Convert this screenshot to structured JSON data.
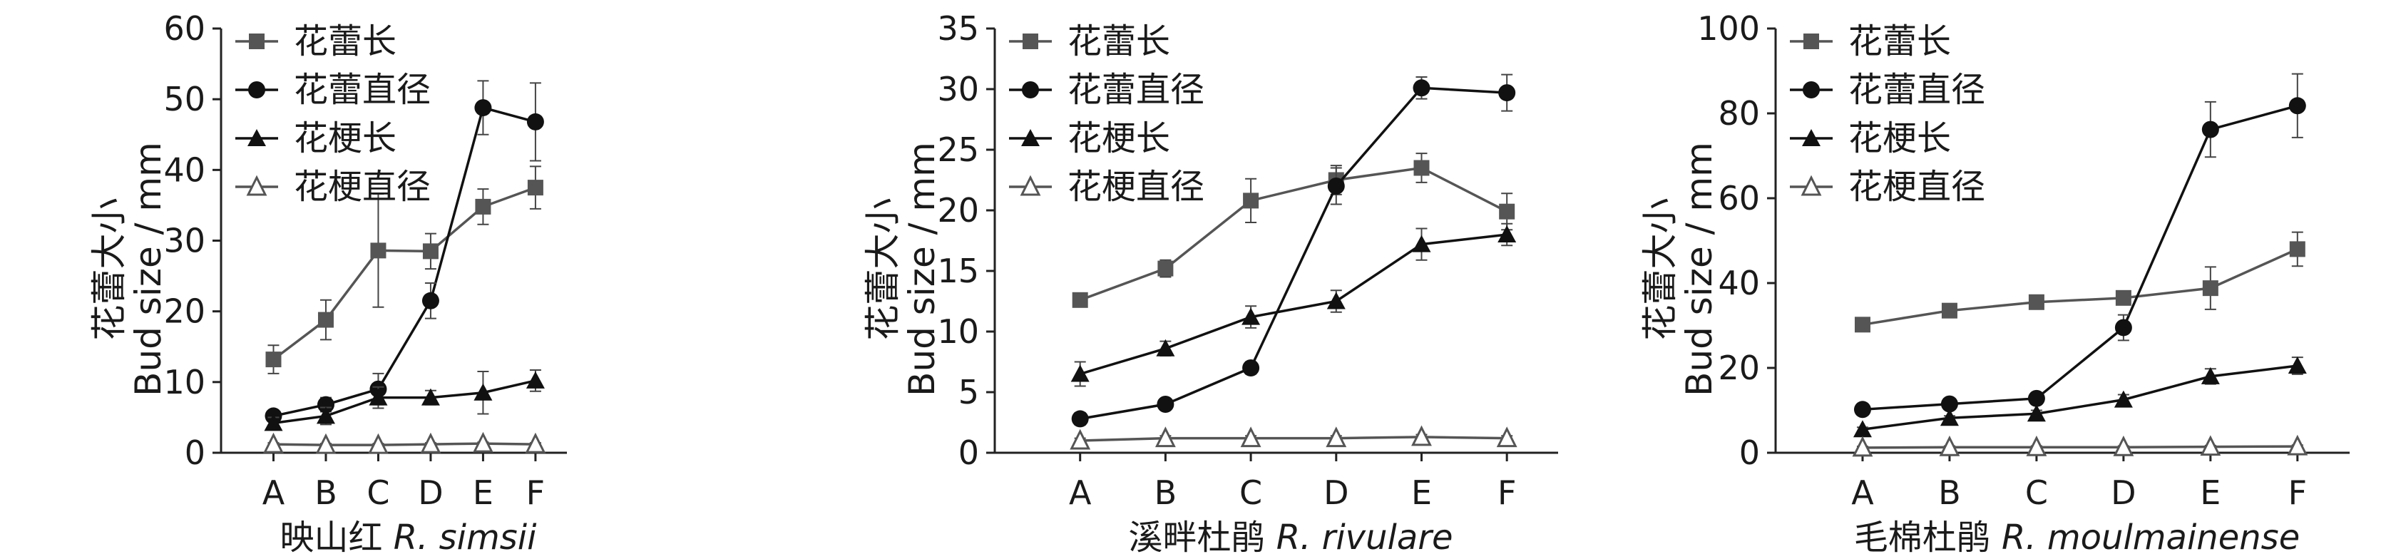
{
  "chart_data": [
    {
      "type": "line",
      "categories": [
        "A",
        "B",
        "C",
        "D",
        "E",
        "F"
      ],
      "xlabel": {
        "cn": "映山红",
        "latin": "R. simsii"
      },
      "ylabel": {
        "cn": "花蕾大小",
        "en": "Bud size / mm"
      },
      "ylim": [
        0,
        60
      ],
      "yticks": [
        0,
        10,
        20,
        30,
        40,
        50,
        60
      ],
      "legend": "top-left",
      "series": [
        {
          "name": "花蕾长",
          "marker": "square",
          "color": "#555555",
          "values": [
            13.2,
            18.8,
            28.6,
            28.5,
            34.8,
            37.5
          ],
          "errors": [
            2.0,
            2.8,
            8.0,
            2.5,
            2.5,
            3.0
          ]
        },
        {
          "name": "花蕾直径",
          "marker": "circle",
          "color": "#111111",
          "values": [
            5.2,
            6.8,
            9.0,
            21.5,
            48.8,
            46.8
          ],
          "errors": [
            0.8,
            1.0,
            2.2,
            2.5,
            3.8,
            5.5
          ]
        },
        {
          "name": "花梗长",
          "marker": "triangle",
          "color": "#111111",
          "values": [
            4.2,
            5.2,
            7.8,
            7.8,
            8.5,
            10.2
          ],
          "errors": [
            0.8,
            1.2,
            1.5,
            1.0,
            3.0,
            1.5
          ]
        },
        {
          "name": "花梗直径",
          "marker": "star",
          "color": "#555555",
          "values": [
            1.2,
            1.1,
            1.1,
            1.2,
            1.3,
            1.2
          ],
          "errors": [
            0.2,
            0.2,
            0.2,
            0.2,
            0.2,
            0.2
          ]
        }
      ]
    },
    {
      "type": "line",
      "categories": [
        "A",
        "B",
        "C",
        "D",
        "E",
        "F"
      ],
      "xlabel": {
        "cn": "溪畔杜鹃",
        "latin": "R. rivulare"
      },
      "ylabel": {
        "cn": "花蕾大小",
        "en": "Bud size / mm"
      },
      "ylim": [
        0,
        35
      ],
      "yticks": [
        0,
        5,
        10,
        15,
        20,
        25,
        30,
        35
      ],
      "legend": "top-left",
      "series": [
        {
          "name": "花蕾长",
          "marker": "square",
          "color": "#555555",
          "values": [
            12.6,
            15.2,
            20.8,
            22.5,
            23.5,
            19.9
          ],
          "errors": [
            0.5,
            0.7,
            1.8,
            1.2,
            1.2,
            1.5
          ]
        },
        {
          "name": "花蕾直径",
          "marker": "circle",
          "color": "#111111",
          "values": [
            2.8,
            4.0,
            7.0,
            22.0,
            30.1,
            29.7
          ],
          "errors": [
            0.5,
            0.3,
            0.5,
            1.5,
            0.9,
            1.5
          ]
        },
        {
          "name": "花梗长",
          "marker": "triangle",
          "color": "#111111",
          "values": [
            6.5,
            8.6,
            11.2,
            12.5,
            17.2,
            18.0
          ],
          "errors": [
            1.0,
            0.6,
            0.9,
            0.9,
            1.3,
            0.9
          ]
        },
        {
          "name": "花梗直径",
          "marker": "star",
          "color": "#555555",
          "values": [
            1.0,
            1.2,
            1.2,
            1.2,
            1.3,
            1.2
          ],
          "errors": [
            0.2,
            0.2,
            0.2,
            0.2,
            0.2,
            0.2
          ]
        }
      ]
    },
    {
      "type": "line",
      "categories": [
        "A",
        "B",
        "C",
        "D",
        "E",
        "F"
      ],
      "xlabel": {
        "cn": "毛棉杜鹃",
        "latin": "R. moulmainense"
      },
      "ylabel": {
        "cn": "花蕾大小",
        "en": "Bud size / mm"
      },
      "ylim": [
        0,
        100
      ],
      "yticks": [
        0,
        20,
        40,
        60,
        80,
        100
      ],
      "legend": "top-left",
      "series": [
        {
          "name": "花蕾长",
          "marker": "square",
          "color": "#555555",
          "values": [
            30.2,
            33.5,
            35.5,
            36.5,
            38.8,
            48.0
          ],
          "errors": [
            1.0,
            1.0,
            1.0,
            1.5,
            5.0,
            4.0
          ]
        },
        {
          "name": "花蕾直径",
          "marker": "circle",
          "color": "#111111",
          "values": [
            10.2,
            11.5,
            12.8,
            29.5,
            76.2,
            81.8
          ],
          "errors": [
            1.0,
            1.0,
            1.0,
            3.0,
            6.5,
            7.5
          ]
        },
        {
          "name": "花梗长",
          "marker": "triangle",
          "color": "#111111",
          "values": [
            5.5,
            8.2,
            9.2,
            12.5,
            18.0,
            20.5
          ],
          "errors": [
            0.5,
            0.5,
            0.8,
            1.2,
            1.8,
            2.0
          ]
        },
        {
          "name": "花梗直径",
          "marker": "star",
          "color": "#555555",
          "values": [
            1.2,
            1.3,
            1.3,
            1.3,
            1.4,
            1.5
          ],
          "errors": [
            0.3,
            0.3,
            0.3,
            0.3,
            0.3,
            0.3
          ]
        }
      ]
    }
  ]
}
